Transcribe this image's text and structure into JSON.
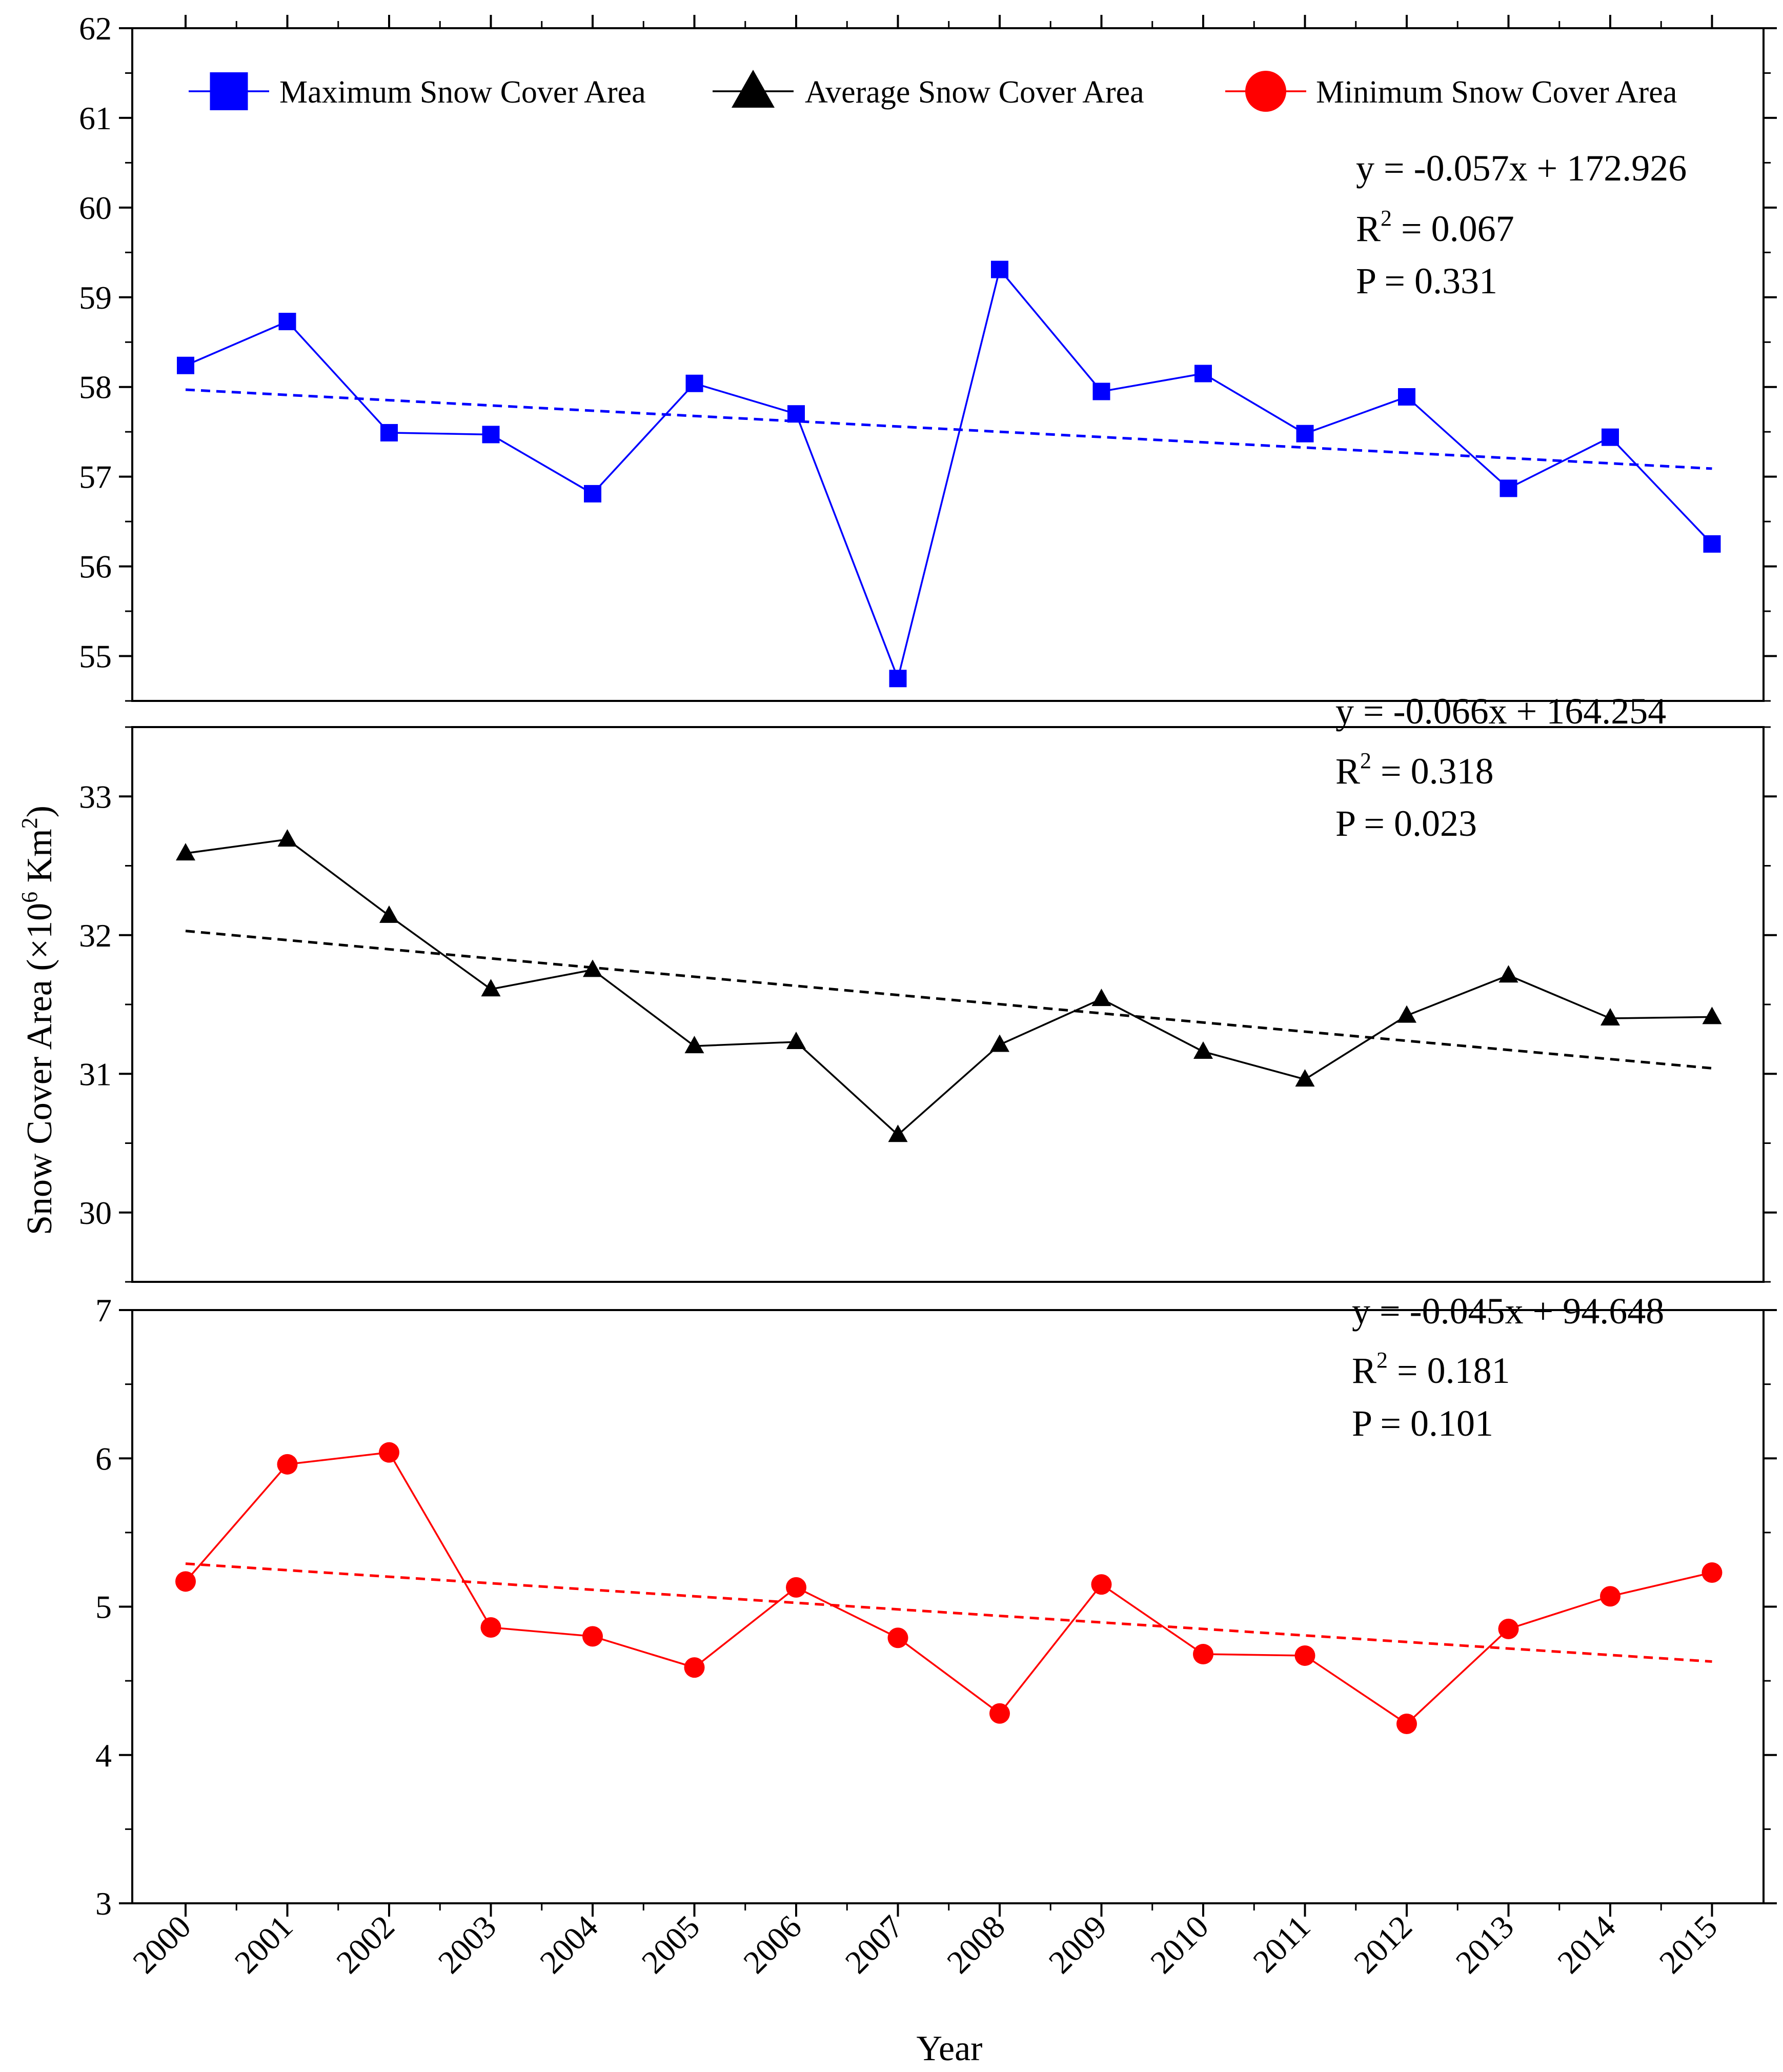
{
  "chart_data": {
    "type": "line",
    "x": [
      2000,
      2001,
      2002,
      2003,
      2004,
      2005,
      2006,
      2007,
      2008,
      2009,
      2010,
      2011,
      2012,
      2013,
      2014,
      2015
    ],
    "xlabel": "Year",
    "ylabel_main": "Snow Cover Area (×10",
    "ylabel_exp": "6",
    "ylabel_unit": " Km",
    "ylabel_unit_exp": "2",
    "ylabel_close": ")",
    "legend": [
      {
        "name": "Maximum Snow Cover Area",
        "marker": "square",
        "color": "#0000FF"
      },
      {
        "name": "Average Snow Cover Area",
        "marker": "triangle",
        "color": "#000000"
      },
      {
        "name": "Minimum Snow Cover Area",
        "marker": "circle",
        "color": "#FF0000"
      }
    ],
    "panels": [
      {
        "series_name": "Maximum Snow Cover Area",
        "color": "#0000FF",
        "marker": "square",
        "ylim": [
          54.5,
          62
        ],
        "yticks": [
          55,
          56,
          57,
          58,
          59,
          60,
          61,
          62
        ],
        "values": [
          58.24,
          58.73,
          57.49,
          57.47,
          56.81,
          58.04,
          57.7,
          54.75,
          59.31,
          57.95,
          58.15,
          57.48,
          57.89,
          56.87,
          57.44,
          56.25
        ],
        "trend": [
          57.97,
          57.09
        ],
        "equation": "y = -0.057x + 172.926",
        "r2_prefix": "R",
        "r2_exp": "2",
        "r2_value": " = 0.067",
        "p_text": "P = 0.331"
      },
      {
        "series_name": "Average Snow Cover Area",
        "color": "#000000",
        "marker": "triangle",
        "ylim": [
          29.5,
          33.5
        ],
        "yticks": [
          30,
          31,
          32,
          33
        ],
        "values": [
          32.59,
          32.69,
          32.14,
          31.61,
          31.75,
          31.2,
          31.23,
          30.56,
          31.21,
          31.54,
          31.16,
          30.96,
          31.42,
          31.71,
          31.4,
          31.41
        ],
        "trend": [
          32.03,
          31.04
        ],
        "equation": "y = -0.066x + 164.254",
        "r2_prefix": "R",
        "r2_exp": "2",
        "r2_value": " = 0.318",
        "p_text": "P = 0.023"
      },
      {
        "series_name": "Minimum Snow Cover Area",
        "color": "#FF0000",
        "marker": "circle",
        "ylim": [
          3,
          7
        ],
        "yticks": [
          3,
          4,
          5,
          6,
          7
        ],
        "values": [
          5.17,
          5.96,
          6.04,
          4.86,
          4.8,
          4.59,
          5.13,
          4.79,
          4.28,
          5.15,
          4.68,
          4.67,
          4.21,
          4.85,
          5.07,
          5.23
        ],
        "trend": [
          5.29,
          4.63
        ],
        "equation": "y = -0.045x + 94.648",
        "r2_prefix": "R",
        "r2_exp": "2",
        "r2_value": " = 0.181",
        "p_text": "P = 0.101"
      }
    ]
  }
}
